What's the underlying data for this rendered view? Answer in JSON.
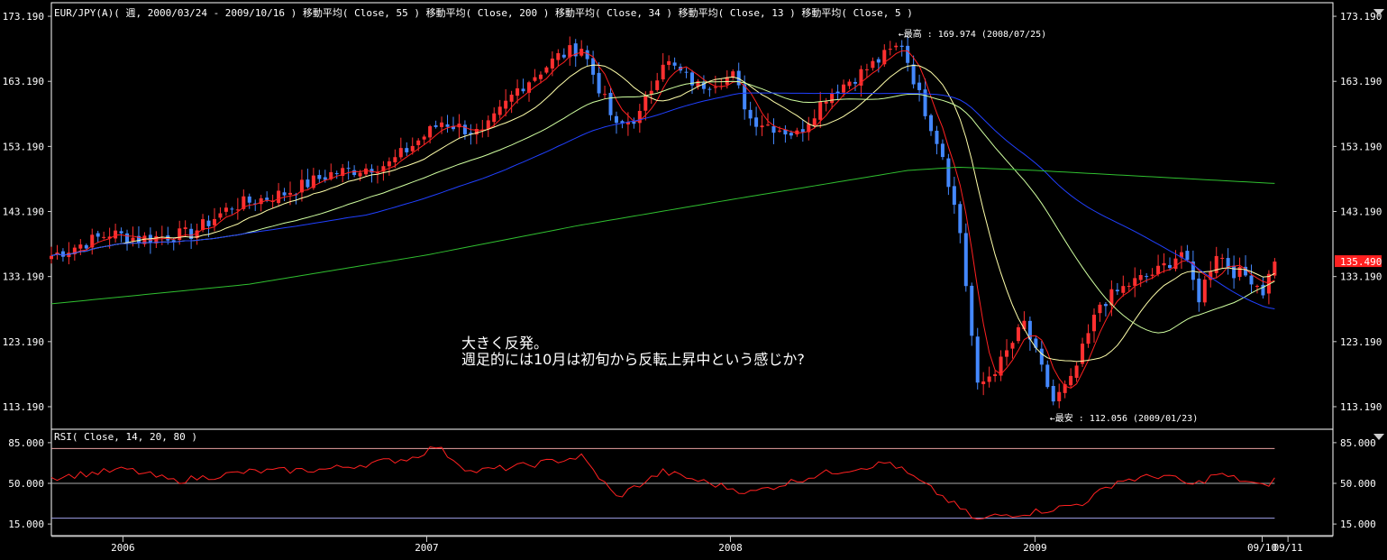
{
  "header": {
    "price": "EUR/JPY(A)( 週, 2000/03/24 - 2009/10/16 )  移動平均( Close, 55 )  移動平均( Close, 200 )  移動平均( Close, 34 )  移動平均( Close, 13 )  移動平均( Close, 5 )",
    "rsi": "RSI( Close, 14, 20, 80 )"
  },
  "annotations": {
    "high": "←最高 : 169.974 (2008/07/25)",
    "low": "←最安 : 112.056 (2009/01/23)",
    "comment_line1": "大きく反発。",
    "comment_line2": "週足的には10月は初旬から反転上昇中という感じか?"
  },
  "colors": {
    "up": "#ff3030",
    "down": "#4488ff",
    "ma5": "#ff2020",
    "ma13": "#ffffaa",
    "ma34": "#d0ffa0",
    "ma55": "#2040ff",
    "ma200": "#30c030",
    "rsi": "#ff2020",
    "frame": "#ffffff",
    "last_price_bg": "#ff2020"
  },
  "chart_data": [
    {
      "type": "candlestick",
      "ylim": [
        110,
        175
      ],
      "yticks": [
        "173.190",
        "163.190",
        "153.190",
        "143.190",
        "133.190",
        "123.190",
        "113.190"
      ],
      "ytick_values": [
        173.19,
        163.19,
        153.19,
        143.19,
        133.19,
        123.19,
        113.19
      ],
      "last_price": "135.490",
      "last_price_value": 135.49,
      "xlim": [
        "2005-10-07",
        "2009-12-25"
      ],
      "xticks": [
        "2006",
        "2007",
        "2008",
        "2009",
        "09/10",
        "09/11"
      ],
      "xtick_dates": [
        "2006-01-01",
        "2007-01-01",
        "2008-01-01",
        "2009-01-01",
        "2009-10-01",
        "2009-11-01"
      ],
      "high_point": {
        "date": "2008-07-25",
        "value": 169.974
      },
      "low_point": {
        "date": "2009-01-23",
        "value": 112.056
      },
      "close_waypoints": [
        [
          "2005-10-07",
          136.4
        ],
        [
          "2005-12-16",
          139.8
        ],
        [
          "2006-01-20",
          139.0
        ],
        [
          "2006-03-24",
          139.8
        ],
        [
          "2006-05-12",
          144.0
        ],
        [
          "2006-07-14",
          146.0
        ],
        [
          "2006-09-08",
          149.0
        ],
        [
          "2006-11-17",
          150.5
        ],
        [
          "2007-01-19",
          157.0
        ],
        [
          "2007-03-09",
          155.0
        ],
        [
          "2007-04-20",
          162.0
        ],
        [
          "2007-06-08",
          167.0
        ],
        [
          "2007-07-06",
          168.5
        ],
        [
          "2007-08-17",
          156.0
        ],
        [
          "2007-09-14",
          158.0
        ],
        [
          "2007-10-12",
          166.5
        ],
        [
          "2007-11-23",
          162.5
        ],
        [
          "2008-01-04",
          164.0
        ],
        [
          "2008-01-25",
          157.5
        ],
        [
          "2008-03-21",
          155.0
        ],
        [
          "2008-04-25",
          161.0
        ],
        [
          "2008-06-06",
          164.5
        ],
        [
          "2008-07-25",
          169.0
        ],
        [
          "2008-08-15",
          161.0
        ],
        [
          "2008-09-12",
          152.0
        ],
        [
          "2008-10-03",
          140.0
        ],
        [
          "2008-10-24",
          116.0
        ],
        [
          "2008-11-21",
          120.0
        ],
        [
          "2008-12-19",
          126.0
        ],
        [
          "2009-01-23",
          114.0
        ],
        [
          "2009-02-13",
          117.0
        ],
        [
          "2009-03-20",
          129.0
        ],
        [
          "2009-04-24",
          132.0
        ],
        [
          "2009-05-29",
          134.0
        ],
        [
          "2009-06-26",
          137.0
        ],
        [
          "2009-07-17",
          130.0
        ],
        [
          "2009-08-07",
          137.0
        ],
        [
          "2009-08-28",
          134.0
        ],
        [
          "2009-09-18",
          133.0
        ],
        [
          "2009-10-02",
          131.0
        ],
        [
          "2009-10-16",
          135.49
        ]
      ],
      "moving_averages": [
        {
          "period": 5
        },
        {
          "period": 13
        },
        {
          "period": 34
        },
        {
          "period": 55
        },
        {
          "period": 200
        }
      ],
      "ma200_waypoints": [
        [
          "2005-10-07",
          129.0
        ],
        [
          "2006-06-01",
          132.0
        ],
        [
          "2007-01-01",
          136.5
        ],
        [
          "2007-07-01",
          141.0
        ],
        [
          "2008-01-01",
          145.0
        ],
        [
          "2008-08-01",
          149.5
        ],
        [
          "2008-10-01",
          150.0
        ],
        [
          "2009-01-01",
          149.5
        ],
        [
          "2009-10-16",
          147.5
        ]
      ]
    },
    {
      "type": "line",
      "name": "RSI",
      "ylim": [
        5,
        95
      ],
      "yticks": [
        "85.000",
        "50.000",
        "15.000"
      ],
      "ytick_values": [
        85,
        50,
        15
      ],
      "levels": [
        80,
        50,
        20
      ],
      "waypoints": [
        [
          "2005-10-07",
          55
        ],
        [
          "2006-01-06",
          62
        ],
        [
          "2006-03-03",
          52
        ],
        [
          "2006-06-02",
          60
        ],
        [
          "2006-09-01",
          62
        ],
        [
          "2006-12-15",
          72
        ],
        [
          "2007-01-12",
          82
        ],
        [
          "2007-02-23",
          60
        ],
        [
          "2007-04-27",
          65
        ],
        [
          "2007-07-06",
          73
        ],
        [
          "2007-08-17",
          38
        ],
        [
          "2007-10-12",
          60
        ],
        [
          "2007-12-07",
          50
        ],
        [
          "2008-01-25",
          42
        ],
        [
          "2008-04-18",
          58
        ],
        [
          "2008-07-11",
          68
        ],
        [
          "2008-09-05",
          42
        ],
        [
          "2008-10-24",
          18
        ],
        [
          "2008-11-14",
          22
        ],
        [
          "2008-12-26",
          25
        ],
        [
          "2009-01-23",
          28
        ],
        [
          "2009-02-27",
          33
        ],
        [
          "2009-04-10",
          52
        ],
        [
          "2009-06-05",
          57
        ],
        [
          "2009-07-10",
          48
        ],
        [
          "2009-08-07",
          58
        ],
        [
          "2009-09-11",
          52
        ],
        [
          "2009-10-02",
          47
        ],
        [
          "2009-10-16",
          53
        ]
      ]
    }
  ]
}
